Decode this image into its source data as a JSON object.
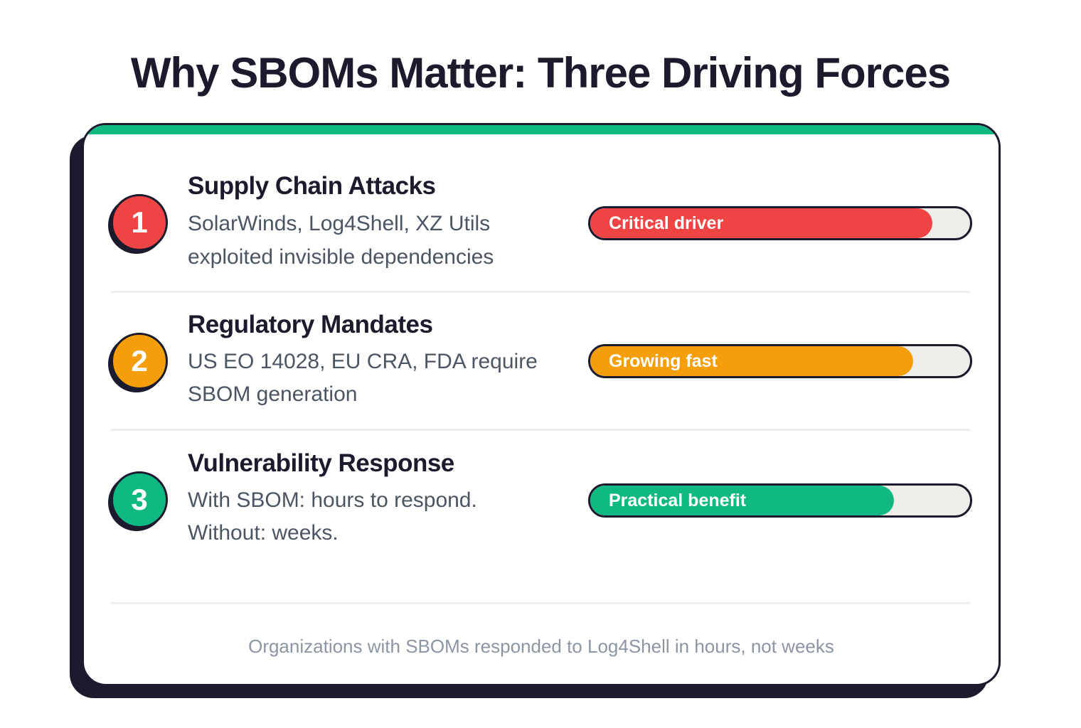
{
  "title": "Why SBOMs Matter: Three Driving Forces",
  "accent_color": "#10b981",
  "rows": [
    {
      "number": "1",
      "title": "Supply Chain Attacks",
      "description": "SolarWinds, Log4Shell, XZ Utils exploited invisible dependencies",
      "bar_label": "Critical driver",
      "level": 0.9,
      "color": "#ef4444"
    },
    {
      "number": "2",
      "title": "Regulatory Mandates",
      "description": "US EO 14028, EU CRA, FDA require SBOM generation",
      "bar_label": "Growing fast",
      "level": 0.85,
      "color": "#f59e0b"
    },
    {
      "number": "3",
      "title": "Vulnerability Response",
      "description": "With SBOM: hours to respond. Without: weeks.",
      "bar_label": "Practical benefit",
      "level": 0.8,
      "color": "#10b981"
    }
  ],
  "footer": "Organizations with SBOMs responded to Log4Shell in hours, not weeks"
}
